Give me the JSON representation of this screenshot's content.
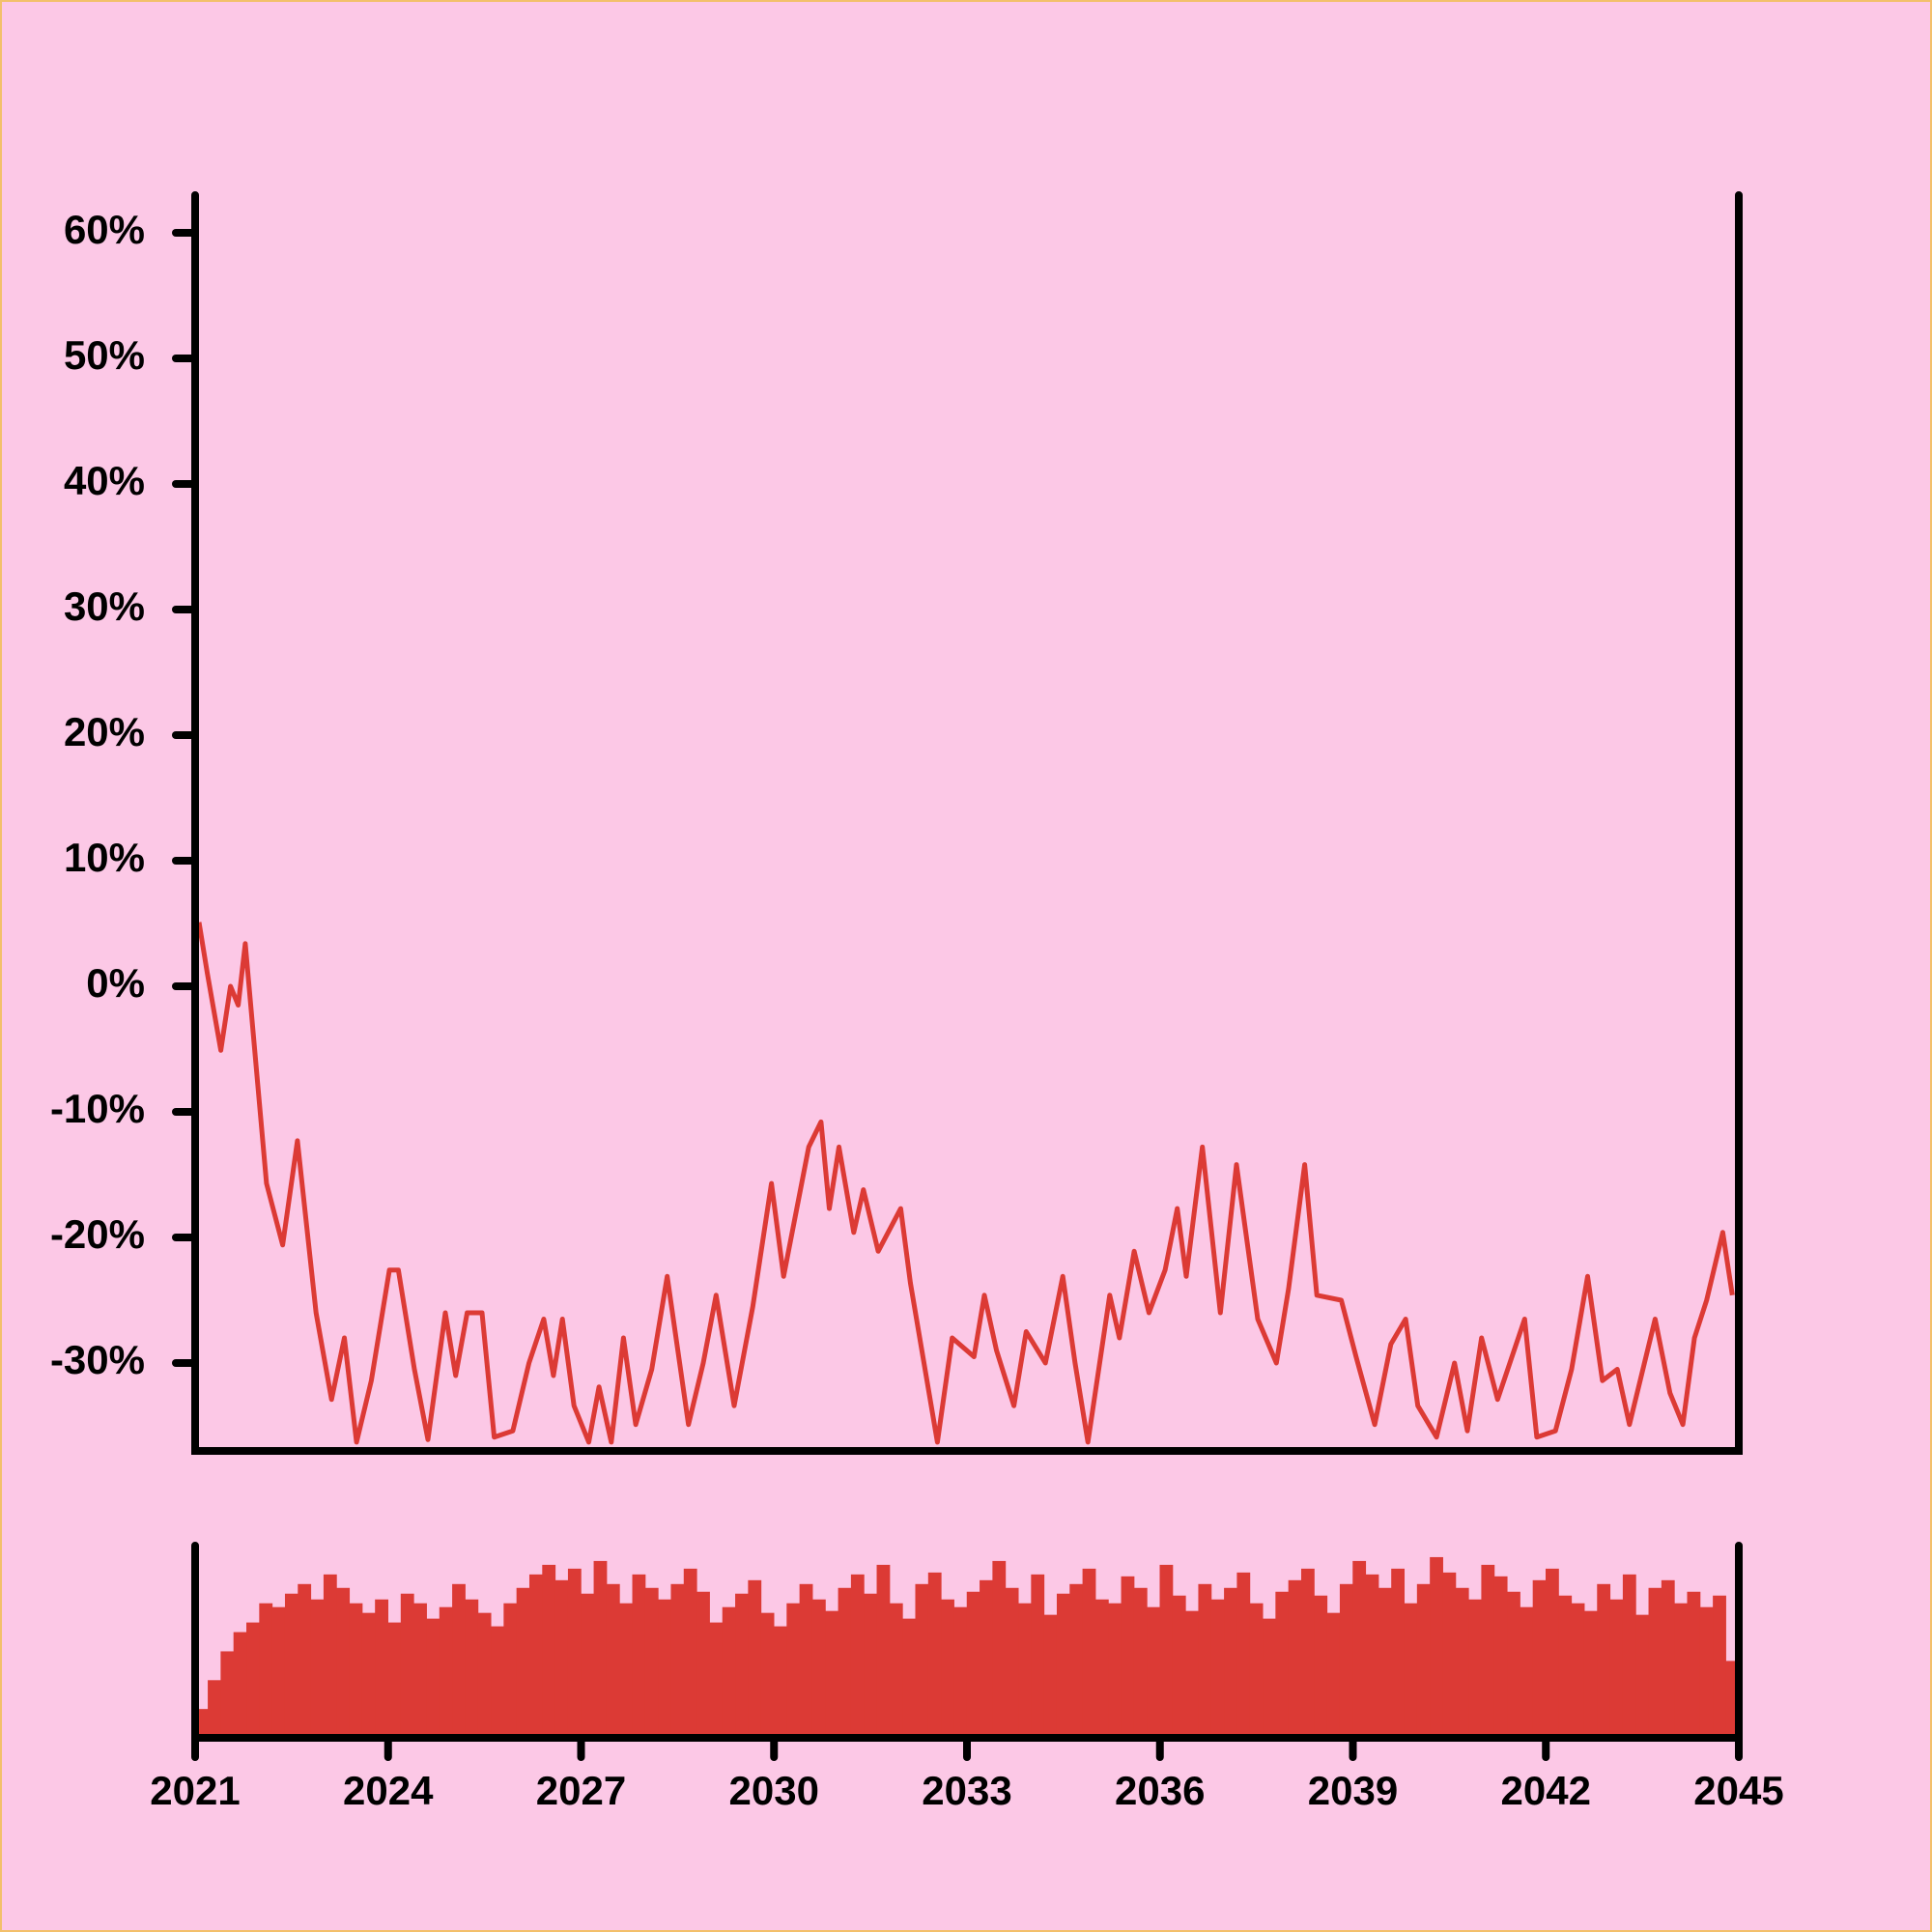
{
  "chart_data": [
    {
      "type": "line",
      "color": "#dc3a35",
      "x": [
        2021.06,
        2021.19,
        2021.4,
        2021.55,
        2021.67,
        2021.78,
        2022.11,
        2022.36,
        2022.59,
        2022.88,
        2023.12,
        2023.32,
        2023.51,
        2023.74,
        2024.02,
        2024.16,
        2024.41,
        2024.62,
        2024.89,
        2025.05,
        2025.23,
        2025.46,
        2025.65,
        2025.94,
        2026.19,
        2026.42,
        2026.57,
        2026.71,
        2026.89,
        2027.12,
        2027.28,
        2027.47,
        2027.66,
        2027.85,
        2028.1,
        2028.34,
        2028.67,
        2028.9,
        2029.1,
        2029.38,
        2029.67,
        2029.96,
        2030.15,
        2030.54,
        2030.73,
        2030.86,
        2031.01,
        2031.24,
        2031.39,
        2031.62,
        2031.97,
        2032.12,
        2032.54,
        2032.77,
        2033.11,
        2033.27,
        2033.46,
        2033.73,
        2033.92,
        2034.22,
        2034.49,
        2034.68,
        2034.88,
        2035.22,
        2035.37,
        2035.6,
        2035.83,
        2036.08,
        2036.27,
        2036.41,
        2036.66,
        2036.94,
        2037.19,
        2037.52,
        2037.81,
        2038.0,
        2038.25,
        2038.44,
        2038.82,
        2039.05,
        2039.34,
        2039.59,
        2039.82,
        2040.01,
        2040.3,
        2040.58,
        2040.78,
        2041.0,
        2041.25,
        2041.67,
        2041.86,
        2042.15,
        2042.4,
        2042.65,
        2042.88,
        2043.11,
        2043.3,
        2043.7,
        2043.93,
        2044.13,
        2044.31,
        2044.5,
        2044.75,
        2044.9
      ],
      "values": [
        5.1,
        1,
        -5.1,
        0,
        -1.5,
        3.4,
        -15.7,
        -20.6,
        -12.3,
        -26,
        -32.9,
        -28,
        -36.3,
        -31.4,
        -22.6,
        -22.6,
        -30.5,
        -36.1,
        -26,
        -31,
        -26,
        -26,
        -35.9,
        -35.4,
        -30,
        -26.5,
        -31,
        -26.5,
        -33.4,
        -36.3,
        -31.9,
        -36.3,
        -28,
        -34.9,
        -30.5,
        -23.1,
        -34.9,
        -30,
        -24.6,
        -33.4,
        -25.5,
        -15.7,
        -23.1,
        -12.8,
        -10.8,
        -17.7,
        -12.8,
        -19.6,
        -16.2,
        -21.1,
        -17.7,
        -23.6,
        -36.3,
        -28,
        -29.5,
        -24.6,
        -29,
        -33.4,
        -27.5,
        -30,
        -23.1,
        -30,
        -36.3,
        -24.6,
        -28,
        -21.1,
        -26,
        -22.6,
        -17.7,
        -23.1,
        -12.8,
        -26,
        -14.2,
        -26.5,
        -30,
        -24.1,
        -14.2,
        -24.6,
        -25,
        -29.5,
        -34.9,
        -28.5,
        -26.5,
        -33.4,
        -35.9,
        -30,
        -35.4,
        -28,
        -32.9,
        -26.5,
        -35.9,
        -35.4,
        -30.5,
        -23.1,
        -31.4,
        -30.5,
        -34.9,
        -26.5,
        -32.4,
        -34.9,
        -28,
        -25,
        -19.6,
        -24.6
      ],
      "xlim": [
        2021,
        2045
      ],
      "ylim": [
        -37,
        63
      ],
      "yticks": [
        {
          "value": -30,
          "label": "-30%"
        },
        {
          "value": -20,
          "label": "-20%"
        },
        {
          "value": -10,
          "label": "-10%"
        },
        {
          "value": 0,
          "label": "0%"
        },
        {
          "value": 10,
          "label": "10%"
        },
        {
          "value": 20,
          "label": "20%"
        },
        {
          "value": 30,
          "label": "30%"
        },
        {
          "value": 40,
          "label": "40%"
        },
        {
          "value": 50,
          "label": "50%"
        },
        {
          "value": 60,
          "label": "60%"
        }
      ]
    },
    {
      "type": "bar",
      "color": "#dc3a35",
      "x": [
        2021.1,
        2021.3,
        2021.5,
        2021.7,
        2021.9,
        2022.1,
        2022.3,
        2022.5,
        2022.7,
        2022.9,
        2023.1,
        2023.3,
        2023.5,
        2023.7,
        2023.9,
        2024.1,
        2024.3,
        2024.5,
        2024.7,
        2024.9,
        2025.1,
        2025.3,
        2025.5,
        2025.7,
        2025.9,
        2026.1,
        2026.3,
        2026.5,
        2026.7,
        2026.9,
        2027.1,
        2027.3,
        2027.5,
        2027.7,
        2027.9,
        2028.1,
        2028.3,
        2028.5,
        2028.7,
        2028.9,
        2029.1,
        2029.3,
        2029.5,
        2029.7,
        2029.9,
        2030.1,
        2030.3,
        2030.5,
        2030.7,
        2030.9,
        2031.1,
        2031.3,
        2031.5,
        2031.7,
        2031.9,
        2032.1,
        2032.3,
        2032.5,
        2032.7,
        2032.9,
        2033.1,
        2033.3,
        2033.5,
        2033.7,
        2033.9,
        2034.1,
        2034.3,
        2034.5,
        2034.7,
        2034.9,
        2035.1,
        2035.3,
        2035.5,
        2035.7,
        2035.9,
        2036.1,
        2036.3,
        2036.5,
        2036.7,
        2036.9,
        2037.1,
        2037.3,
        2037.5,
        2037.7,
        2037.9,
        2038.1,
        2038.3,
        2038.5,
        2038.7,
        2038.9,
        2039.1,
        2039.3,
        2039.5,
        2039.7,
        2039.9,
        2040.1,
        2040.3,
        2040.5,
        2040.7,
        2040.9,
        2041.1,
        2041.3,
        2041.5,
        2041.7,
        2041.9,
        2042.1,
        2042.3,
        2042.5,
        2042.7,
        2042.9,
        2043.1,
        2043.3,
        2043.5,
        2043.7,
        2043.9,
        2044.1,
        2044.3,
        2044.5,
        2044.7,
        2044.9
      ],
      "values": [
        15,
        30,
        45,
        55,
        60,
        70,
        68,
        75,
        80,
        72,
        85,
        78,
        70,
        65,
        72,
        60,
        75,
        70,
        62,
        68,
        80,
        72,
        65,
        58,
        70,
        78,
        85,
        90,
        82,
        88,
        75,
        92,
        80,
        70,
        85,
        78,
        72,
        80,
        88,
        76,
        60,
        68,
        75,
        82,
        65,
        58,
        70,
        80,
        72,
        66,
        78,
        85,
        75,
        90,
        70,
        62,
        80,
        86,
        72,
        68,
        76,
        82,
        92,
        78,
        70,
        85,
        64,
        75,
        80,
        88,
        72,
        70,
        84,
        78,
        68,
        90,
        74,
        66,
        80,
        72,
        78,
        86,
        70,
        62,
        76,
        82,
        88,
        74,
        65,
        80,
        92,
        85,
        78,
        88,
        70,
        80,
        94,
        86,
        78,
        72,
        90,
        84,
        76,
        68,
        82,
        88,
        74,
        70,
        66,
        80,
        72,
        85,
        64,
        78,
        82,
        70,
        76,
        68,
        74,
        40
      ],
      "xlim": [
        2021,
        2045
      ],
      "ylim": [
        0,
        100
      ],
      "xticks": [
        2021,
        2024,
        2027,
        2030,
        2033,
        2036,
        2039,
        2042,
        2045
      ]
    }
  ]
}
